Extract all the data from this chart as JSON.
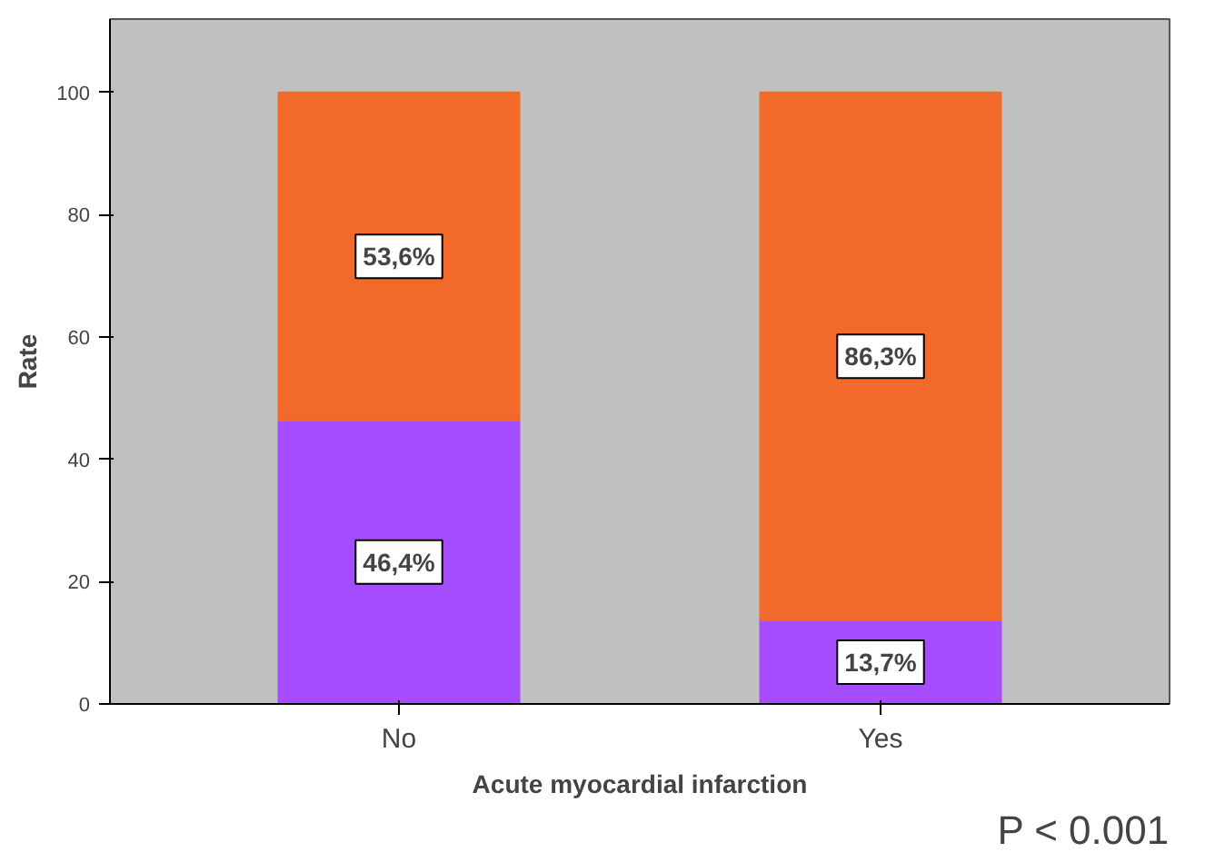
{
  "chart_data": {
    "type": "bar",
    "stacked": true,
    "categories": [
      "No",
      "Yes"
    ],
    "series": [
      {
        "color": "#a64dff",
        "values": [
          46.4,
          13.7
        ],
        "value_labels": [
          "46,4%",
          "13,7%"
        ]
      },
      {
        "color": "#f26a2a",
        "values": [
          53.6,
          86.3
        ],
        "value_labels": [
          "53,6%",
          "86,3%"
        ]
      }
    ],
    "xlabel": "Acute myocardial infarction",
    "ylabel": "Rate",
    "ylim": [
      0,
      112
    ],
    "yticks": [
      0,
      20,
      40,
      60,
      80,
      100
    ],
    "grid": false,
    "annotations": [
      "P < 0.001"
    ]
  }
}
